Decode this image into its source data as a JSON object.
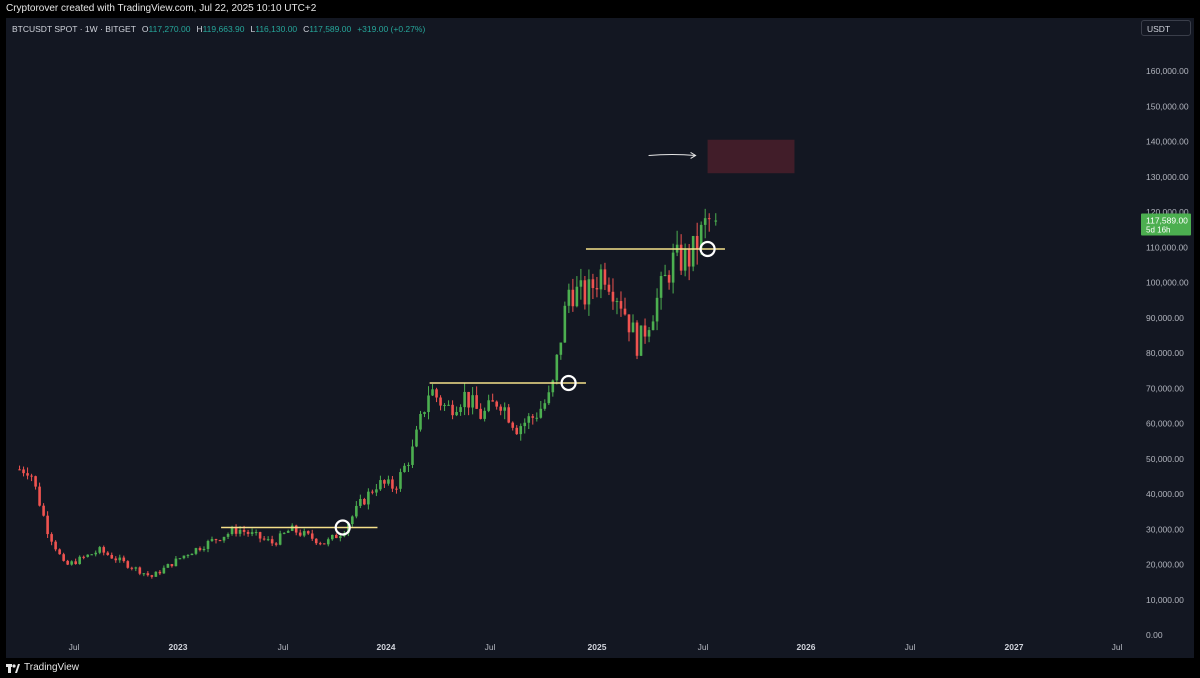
{
  "header": {
    "attribution": "Cryptorover created with TradingView.com, Jul 22, 2025 10:10 UTC+2"
  },
  "legend": {
    "symbol": "BTCUSDT SPOT · 1W · BITGET",
    "open_label": "O",
    "open": "117,270.00",
    "high_label": "H",
    "high": "119,663.90",
    "low_label": "L",
    "low": "116,130.00",
    "close_label": "C",
    "close": "117,589.00",
    "change": "+319.00 (+0.27%)"
  },
  "currency_button": "USDT",
  "footer": {
    "brand": "TradingView"
  },
  "colors": {
    "up": "#26a69a",
    "up_candle": "#4caf50",
    "down": "#ef5350",
    "level_line": "#f5e08a",
    "target_zone": "#4a1f2a",
    "price_tag": "#4caf50"
  },
  "price_tag": {
    "price": "117,589.00",
    "countdown": "5d 16h"
  },
  "chart_data": {
    "type": "candlestick",
    "timeframe": "1W",
    "y_axis": {
      "ylim": [
        0,
        165000
      ],
      "tick_labels": [
        "160,000.00",
        "150,000.00",
        "140,000.00",
        "130,000.00",
        "120,000.00",
        "110,000.00",
        "100,000.00",
        "90,000.00",
        "80,000.00",
        "70,000.00",
        "60,000.00",
        "50,000.00",
        "40,000.00",
        "30,000.00",
        "20,000.00",
        "10,000.00",
        "0.00"
      ],
      "ticks": [
        160000,
        150000,
        140000,
        130000,
        120000,
        110000,
        100000,
        90000,
        80000,
        70000,
        60000,
        50000,
        40000,
        30000,
        20000,
        10000,
        0
      ]
    },
    "x_axis": {
      "tick_labels": [
        "Jul",
        "2023",
        "Jul",
        "2024",
        "Jul",
        "2025",
        "Jul",
        "2026",
        "Jul",
        "2027",
        "Jul"
      ],
      "tick_dates": [
        "2022-07",
        "2023-01",
        "2023-07",
        "2024-01",
        "2024-07",
        "2025-01",
        "2025-07",
        "2026-01",
        "2026-07",
        "2027-01",
        "2027-07"
      ],
      "year_labels": [
        "2023",
        "2024",
        "2025",
        "2026",
        "2027"
      ]
    },
    "key_points": [
      {
        "date": "2022-04",
        "price": 47000
      },
      {
        "date": "2022-05",
        "price": 30000
      },
      {
        "date": "2022-06",
        "price": 19500
      },
      {
        "date": "2022-08",
        "price": 24000
      },
      {
        "date": "2022-11",
        "price": 16500
      },
      {
        "date": "2023-01",
        "price": 23000
      },
      {
        "date": "2023-03",
        "price": 28000
      },
      {
        "date": "2023-04",
        "price": 30000
      },
      {
        "date": "2023-06",
        "price": 26000
      },
      {
        "date": "2023-07",
        "price": 30000
      },
      {
        "date": "2023-09",
        "price": 26000
      },
      {
        "date": "2023-10",
        "price": 29500
      },
      {
        "date": "2023-11",
        "price": 37000
      },
      {
        "date": "2023-12",
        "price": 43000
      },
      {
        "date": "2024-01",
        "price": 42000
      },
      {
        "date": "2024-02",
        "price": 52000
      },
      {
        "date": "2024-03",
        "price": 70000
      },
      {
        "date": "2024-04",
        "price": 64000
      },
      {
        "date": "2024-05",
        "price": 68000
      },
      {
        "date": "2024-06",
        "price": 62000
      },
      {
        "date": "2024-07",
        "price": 67000
      },
      {
        "date": "2024-08",
        "price": 59000
      },
      {
        "date": "2024-09",
        "price": 62000
      },
      {
        "date": "2024-10",
        "price": 68000
      },
      {
        "date": "2024-11",
        "price": 98000
      },
      {
        "date": "2024-12",
        "price": 96000
      },
      {
        "date": "2025-01",
        "price": 104000
      },
      {
        "date": "2025-02",
        "price": 95000
      },
      {
        "date": "2025-03",
        "price": 82000
      },
      {
        "date": "2025-04",
        "price": 94000
      },
      {
        "date": "2025-05",
        "price": 106000
      },
      {
        "date": "2025-06",
        "price": 107000
      },
      {
        "date": "2025-07",
        "price": 117589
      }
    ],
    "levels": [
      {
        "price": 30500,
        "from": "2023-03",
        "to": "2023-12",
        "breakout": "2023-10"
      },
      {
        "price": 71500,
        "from": "2024-03",
        "to": "2024-12",
        "breakout": "2024-11"
      },
      {
        "price": 109500,
        "from": "2024-12",
        "to": "2025-08",
        "breakout": "2025-07"
      }
    ],
    "target_zone": {
      "from": "2025-07",
      "to": "2025-12",
      "price_low": 131000,
      "price_high": 140500
    }
  }
}
